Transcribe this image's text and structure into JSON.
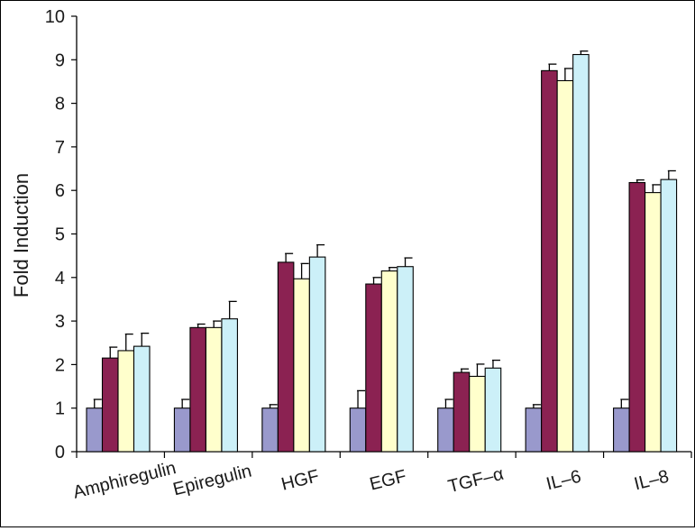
{
  "chart_data": {
    "type": "bar",
    "title": "",
    "xlabel": "",
    "ylabel": "Fold Induction",
    "ylim": [
      0,
      10
    ],
    "yticks": [
      "0",
      "1",
      "2",
      "3",
      "4",
      "5",
      "6",
      "7",
      "8",
      "9",
      "10"
    ],
    "grid": false,
    "legend": "none",
    "categories": [
      "Amphiregulin",
      "Epiregulin",
      "HGF",
      "EGF",
      "TGF–α",
      "IL–6",
      "IL–8"
    ],
    "series": [
      {
        "color": "#9999cc",
        "values": [
          1.0,
          1.0,
          1.0,
          1.0,
          1.0,
          1.0,
          1.0
        ],
        "errors": [
          0.2,
          0.2,
          0.08,
          0.4,
          0.2,
          0.08,
          0.2
        ]
      },
      {
        "color": "#8b2252",
        "values": [
          2.15,
          2.85,
          4.35,
          3.85,
          1.82,
          8.75,
          6.18
        ],
        "errors": [
          0.25,
          0.08,
          0.2,
          0.15,
          0.08,
          0.15,
          0.06
        ]
      },
      {
        "color": "#ffffcc",
        "values": [
          2.32,
          2.85,
          3.97,
          4.15,
          1.73,
          8.52,
          5.95
        ],
        "errors": [
          0.38,
          0.15,
          0.35,
          0.08,
          0.28,
          0.28,
          0.18
        ]
      },
      {
        "color": "#ccf0f8",
        "values": [
          2.42,
          3.05,
          4.47,
          4.25,
          1.92,
          9.12,
          6.25
        ],
        "errors": [
          0.3,
          0.4,
          0.28,
          0.2,
          0.18,
          0.08,
          0.2
        ]
      }
    ]
  }
}
